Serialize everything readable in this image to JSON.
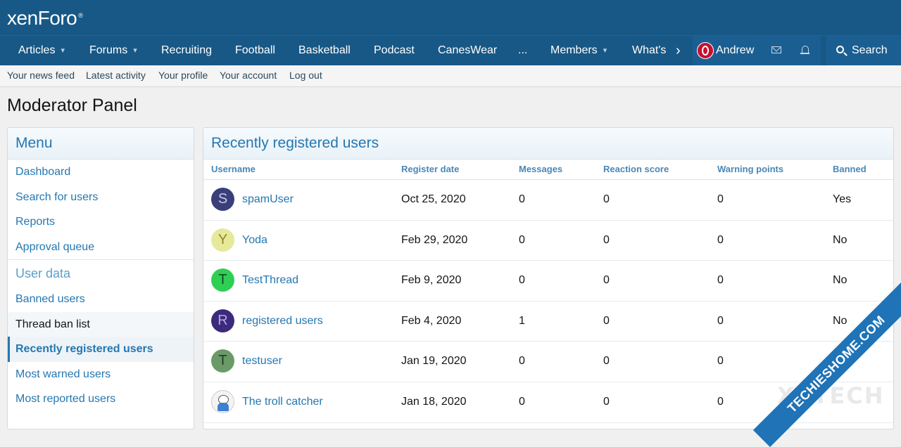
{
  "logo": {
    "text": "xenForo",
    "mark": "®"
  },
  "nav": {
    "items": [
      {
        "label": "Articles",
        "has_menu": true
      },
      {
        "label": "Forums",
        "has_menu": true
      },
      {
        "label": "Recruiting",
        "has_menu": false
      },
      {
        "label": "Football",
        "has_menu": false
      },
      {
        "label": "Basketball",
        "has_menu": false
      },
      {
        "label": "Podcast",
        "has_menu": false
      },
      {
        "label": "CanesWear",
        "has_menu": false
      },
      {
        "label": "...",
        "has_menu": false
      },
      {
        "label": "Members",
        "has_menu": true
      },
      {
        "label": "What's",
        "has_menu": false
      }
    ],
    "more_glyph": "›",
    "chevron_glyph": "▾",
    "user_name": "Andrew",
    "search_label": "Search"
  },
  "subnav": {
    "items": [
      "Your news feed",
      "Latest activity",
      "Your profile",
      "Your account",
      "Log out"
    ]
  },
  "page_title": "Moderator Panel",
  "sidebar": {
    "menu_title": "Menu",
    "menu_items": [
      "Dashboard",
      "Search for users",
      "Reports",
      "Approval queue"
    ],
    "user_data_title": "User data",
    "user_data_items": [
      "Banned users",
      "Thread ban list",
      "Recently registered users",
      "Most warned users",
      "Most reported users"
    ],
    "active_item": "Recently registered users",
    "hover_item": "Thread ban list"
  },
  "main": {
    "title": "Recently registered users",
    "columns": [
      "Username",
      "Register date",
      "Messages",
      "Reaction score",
      "Warning points",
      "Banned"
    ],
    "rows": [
      {
        "initial": "S",
        "avatar_color": "#3a3f7a",
        "initial_color": "#c7c9ea",
        "username": "spamUser",
        "date": "Oct 25, 2020",
        "messages": "0",
        "reaction": "0",
        "warning": "0",
        "banned": "Yes"
      },
      {
        "initial": "Y",
        "avatar_color": "#e6e89a",
        "initial_color": "#8a8b2a",
        "username": "Yoda",
        "date": "Feb 29, 2020",
        "messages": "0",
        "reaction": "0",
        "warning": "0",
        "banned": "No"
      },
      {
        "initial": "T",
        "avatar_color": "#2fcf55",
        "initial_color": "#0b4a1c",
        "username": "TestThread",
        "date": "Feb 9, 2020",
        "messages": "0",
        "reaction": "0",
        "warning": "0",
        "banned": "No"
      },
      {
        "initial": "R",
        "avatar_color": "#3b2b7a",
        "initial_color": "#b9a7ee",
        "username": "registered users",
        "date": "Feb 4, 2020",
        "messages": "1",
        "reaction": "0",
        "warning": "0",
        "banned": "No"
      },
      {
        "initial": "T",
        "avatar_color": "#6a9a68",
        "initial_color": "#1f3d1e",
        "username": "testuser",
        "date": "Jan 19, 2020",
        "messages": "0",
        "reaction": "0",
        "warning": "0",
        "banned": ""
      },
      {
        "initial": "",
        "avatar_color": "troll",
        "initial_color": "",
        "username": "The troll catcher",
        "date": "Jan 18, 2020",
        "messages": "0",
        "reaction": "0",
        "warning": "0",
        "banned": ""
      }
    ]
  },
  "watermark": {
    "ribbon": "TECHIESHOME.COM",
    "word": "XETECH"
  }
}
